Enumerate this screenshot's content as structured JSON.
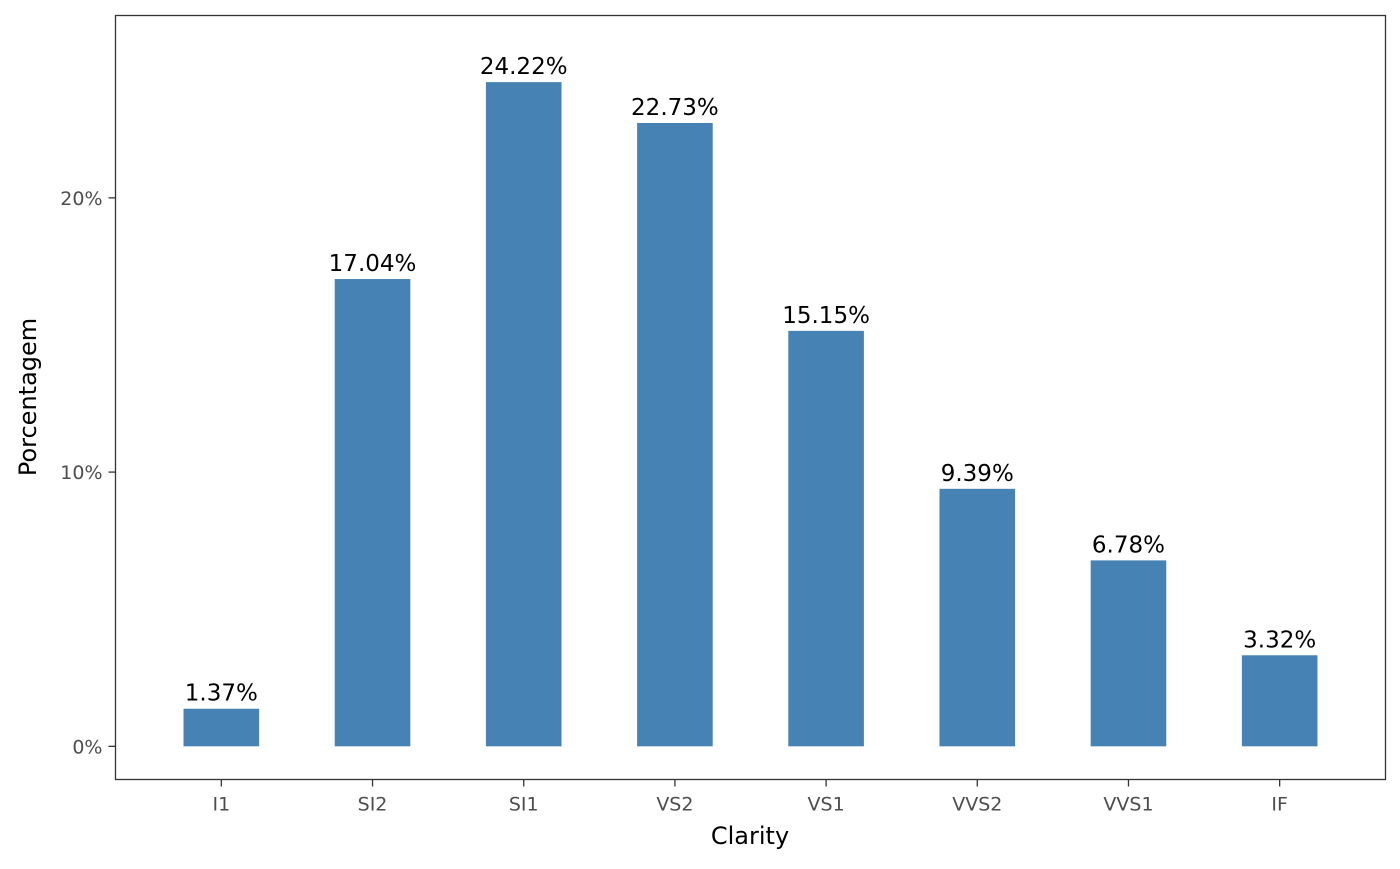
{
  "chart_data": {
    "type": "bar",
    "categories": [
      "I1",
      "SI2",
      "SI1",
      "VS2",
      "VS1",
      "VVS2",
      "VVS1",
      "IF"
    ],
    "values": [
      1.37,
      17.04,
      24.22,
      22.73,
      15.15,
      9.39,
      6.78,
      3.32
    ],
    "value_labels": [
      "1.37%",
      "17.04%",
      "24.22%",
      "22.73%",
      "15.15%",
      "9.39%",
      "6.78%",
      "3.32%"
    ],
    "xlabel": "Clarity",
    "ylabel": "Porcentagem",
    "y_ticks": [
      0,
      10,
      20
    ],
    "y_tick_labels": [
      "0%",
      "10%",
      "20%"
    ],
    "ylim": [
      -1.21,
      26.65
    ],
    "bar_color": "#4682B4",
    "grid": false,
    "legend": "none"
  }
}
